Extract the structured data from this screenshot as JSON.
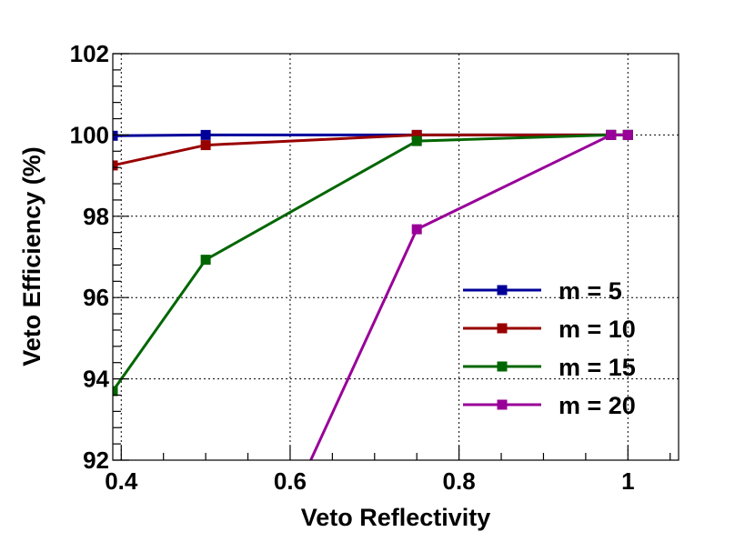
{
  "chart_data": {
    "type": "line",
    "xlabel": "Veto Reflectivity",
    "ylabel": "Veto Efficiency (%)",
    "xlim": [
      0.39,
      1.06
    ],
    "ylim": [
      92,
      102
    ],
    "x_ticks": [
      0.4,
      0.6,
      0.8,
      1
    ],
    "x_tick_labels": [
      "0.4",
      "0.6",
      "0.8",
      "1"
    ],
    "y_ticks": [
      92,
      94,
      96,
      98,
      100,
      102
    ],
    "y_tick_labels": [
      "92",
      "94",
      "96",
      "98",
      "100",
      "102"
    ],
    "grid": true,
    "legend_position": "bottom-right",
    "series": [
      {
        "name": "m = 5",
        "color": "#000099",
        "x": [
          0.39,
          0.5,
          0.75,
          0.98,
          1.0
        ],
        "y": [
          99.98,
          100.0,
          100.0,
          100.0,
          100.0
        ]
      },
      {
        "name": "m = 10",
        "color": "#990000",
        "x": [
          0.39,
          0.5,
          0.75,
          0.98,
          1.0
        ],
        "y": [
          99.25,
          99.75,
          100.0,
          100.0,
          100.0
        ]
      },
      {
        "name": "m = 15",
        "color": "#006600",
        "x": [
          0.39,
          0.5,
          0.75,
          0.98,
          1.0
        ],
        "y": [
          93.7,
          96.93,
          99.85,
          100.0,
          100.0
        ]
      },
      {
        "name": "m = 20",
        "color": "#990099",
        "x": [
          0.62,
          0.75,
          0.98,
          1.0
        ],
        "y": [
          91.8,
          97.68,
          100.0,
          100.0
        ]
      }
    ]
  }
}
